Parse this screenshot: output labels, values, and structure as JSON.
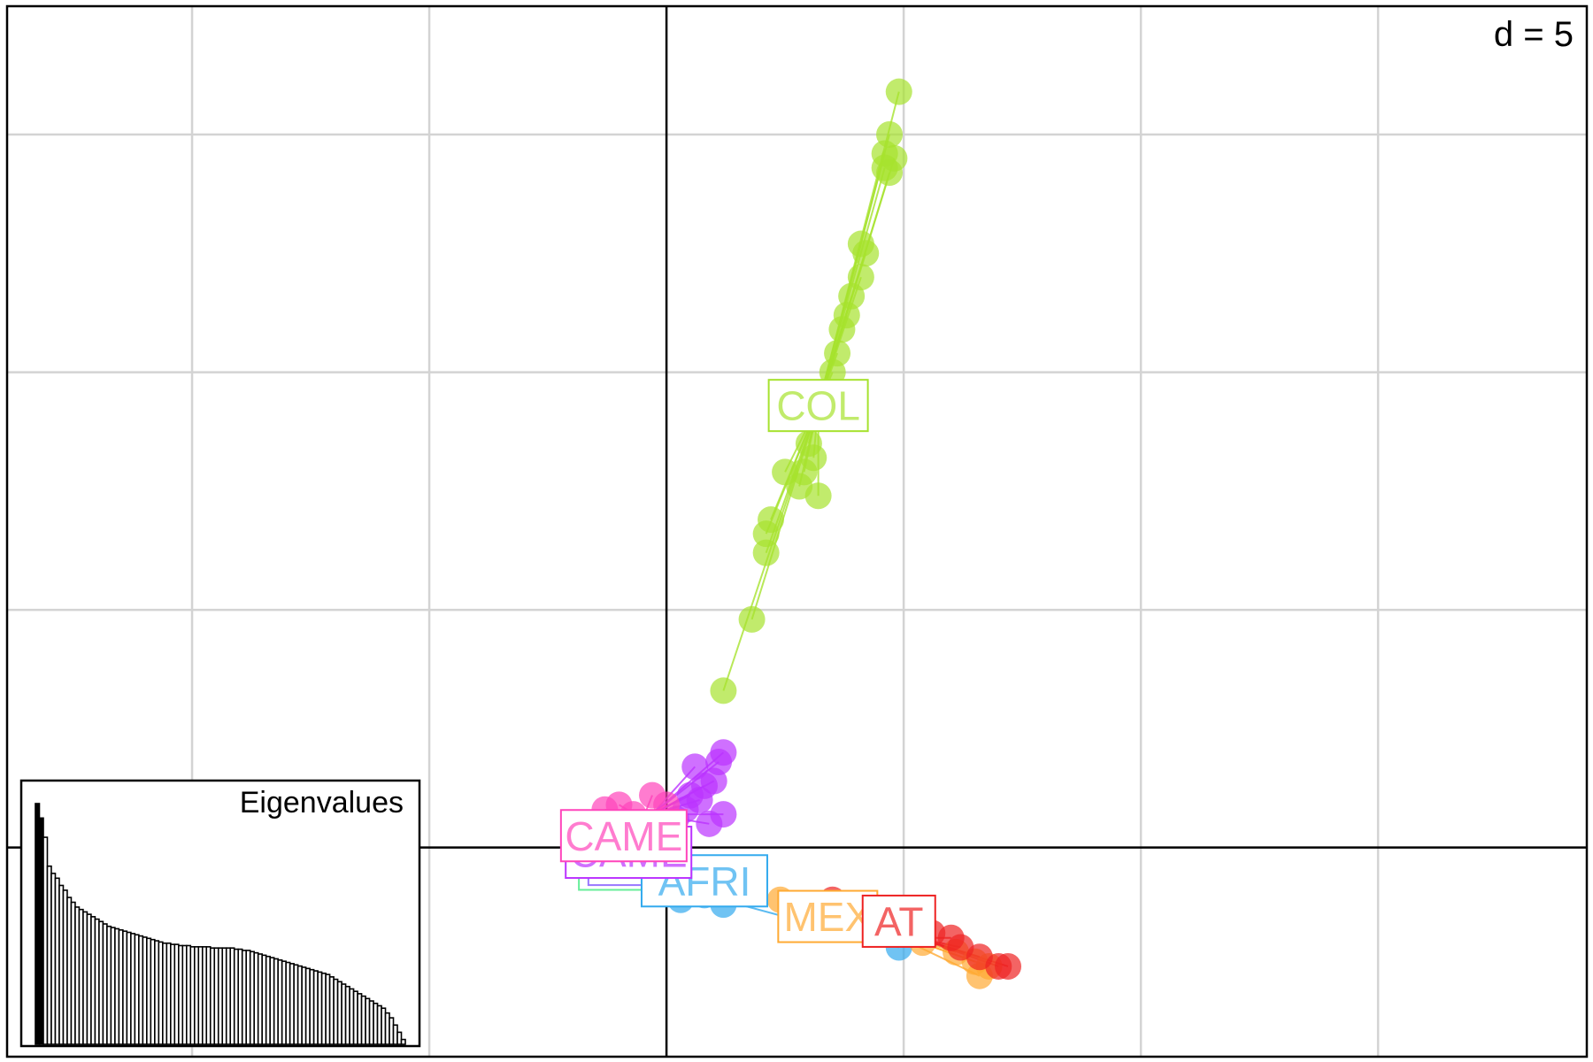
{
  "chart_data": {
    "type": "scatter",
    "title": "",
    "scale_label": "d = 5",
    "xlim": [
      -13.9,
      19.4
    ],
    "ylim": [
      -4.4,
      17.7
    ],
    "grid": true,
    "grid_step": 5,
    "axes_origin": [
      0,
      0
    ],
    "groups": [
      {
        "label": "COL",
        "color": "#a6e22e",
        "label_pos": [
          3.2,
          9.3
        ],
        "centroid": [
          3.2,
          9.3
        ],
        "points": [
          [
            4.9,
            15.9
          ],
          [
            4.7,
            15.0
          ],
          [
            4.6,
            14.6
          ],
          [
            4.8,
            14.5
          ],
          [
            4.6,
            14.3
          ],
          [
            4.7,
            14.2
          ],
          [
            4.1,
            12.7
          ],
          [
            4.2,
            12.5
          ],
          [
            4.1,
            12.0
          ],
          [
            3.9,
            11.6
          ],
          [
            3.8,
            11.2
          ],
          [
            3.7,
            10.9
          ],
          [
            3.6,
            10.4
          ],
          [
            3.5,
            10.0
          ],
          [
            3.0,
            8.5
          ],
          [
            3.1,
            8.2
          ],
          [
            2.5,
            7.9
          ],
          [
            2.9,
            7.9
          ],
          [
            2.8,
            7.6
          ],
          [
            3.2,
            7.4
          ],
          [
            2.2,
            6.9
          ],
          [
            2.1,
            6.6
          ],
          [
            2.1,
            6.2
          ],
          [
            1.8,
            4.8
          ],
          [
            1.2,
            3.3
          ]
        ]
      },
      {
        "label": "CAME",
        "color": "#bb33ff",
        "label_pos": [
          -0.8,
          -0.1
        ],
        "centroid": [
          -0.3,
          0.7
        ],
        "points": [
          [
            1.2,
            2.0
          ],
          [
            1.1,
            1.8
          ],
          [
            0.6,
            1.7
          ],
          [
            1.0,
            1.4
          ],
          [
            0.8,
            1.3
          ],
          [
            0.5,
            1.1
          ],
          [
            0.7,
            1.0
          ],
          [
            0.4,
            0.8
          ],
          [
            1.2,
            0.7
          ],
          [
            0.9,
            0.5
          ],
          [
            0.2,
            0.6
          ]
        ]
      },
      {
        "label": "CAME",
        "color": "#ff44bb",
        "label_pos": [
          -0.9,
          0.25
        ],
        "centroid": [
          -0.5,
          0.6
        ],
        "points": [
          [
            -1.0,
            0.9
          ],
          [
            -1.3,
            0.8
          ],
          [
            -0.3,
            1.1
          ],
          [
            -0.7,
            0.7
          ],
          [
            0.0,
            0.9
          ],
          [
            -0.5,
            0.4
          ],
          [
            -1.2,
            0.5
          ]
        ]
      },
      {
        "label": "AFRI",
        "color": "#33aaee",
        "label_pos": [
          0.8,
          -0.7
        ],
        "centroid": [
          0.8,
          -1.0
        ],
        "points": [
          [
            -0.2,
            -0.9
          ],
          [
            0.3,
            -1.1
          ],
          [
            0.8,
            -1.0
          ],
          [
            1.2,
            -1.2
          ],
          [
            1.4,
            -0.8
          ],
          [
            1.8,
            -0.9
          ],
          [
            0.6,
            -0.7
          ],
          [
            4.9,
            -2.1
          ]
        ]
      },
      {
        "label": "MEX",
        "color": "#ffaa33",
        "label_pos": [
          3.4,
          -1.45
        ],
        "centroid": [
          4.5,
          -1.7
        ],
        "points": [
          [
            2.4,
            -1.1
          ],
          [
            3.1,
            -1.4
          ],
          [
            3.8,
            -1.6
          ],
          [
            4.6,
            -1.8
          ],
          [
            5.4,
            -2.0
          ],
          [
            6.1,
            -2.2
          ],
          [
            6.5,
            -2.4
          ],
          [
            6.8,
            -2.5
          ],
          [
            6.6,
            -2.7
          ]
        ]
      },
      {
        "label": "AT",
        "color": "#ee2222",
        "label_pos": [
          4.9,
          -1.55
        ],
        "centroid": [
          5.3,
          -1.9
        ],
        "points": [
          [
            3.5,
            -1.1
          ],
          [
            4.0,
            -1.4
          ],
          [
            4.8,
            -1.6
          ],
          [
            5.6,
            -1.8
          ],
          [
            6.0,
            -1.9
          ],
          [
            6.2,
            -2.1
          ],
          [
            6.6,
            -2.3
          ],
          [
            7.0,
            -2.5
          ],
          [
            7.2,
            -2.5
          ]
        ]
      }
    ],
    "hidden_labels": [
      {
        "label": "",
        "color": "#66ee99",
        "label_pos": [
          -1.1,
          -0.35
        ]
      },
      {
        "label": "",
        "color": "#9977ff",
        "label_pos": [
          -0.9,
          -0.25
        ]
      }
    ],
    "inset": {
      "title": "Eigenvalues",
      "values": [
        100,
        94,
        86,
        74,
        71,
        69,
        66,
        64,
        61,
        59,
        57,
        56,
        55,
        54,
        53,
        52,
        51,
        50,
        49,
        48.5,
        48,
        47.5,
        47,
        46.5,
        46,
        45.5,
        45,
        44.5,
        44,
        43.5,
        43,
        42.5,
        42,
        42,
        41.5,
        41.5,
        41,
        41,
        41,
        40.5,
        40.5,
        40.5,
        40.5,
        40.5,
        40,
        40,
        40,
        40,
        40,
        40,
        39.5,
        39.5,
        39,
        39,
        38.5,
        38,
        37.5,
        37,
        36.5,
        36,
        35.5,
        35,
        34.5,
        34,
        33.5,
        33,
        32.5,
        32,
        31.5,
        31,
        30.5,
        30,
        29.5,
        29,
        28,
        27,
        26,
        25,
        24,
        23,
        22,
        21,
        20,
        19,
        18,
        17,
        16,
        15,
        13,
        11,
        8,
        5,
        2
      ]
    }
  }
}
